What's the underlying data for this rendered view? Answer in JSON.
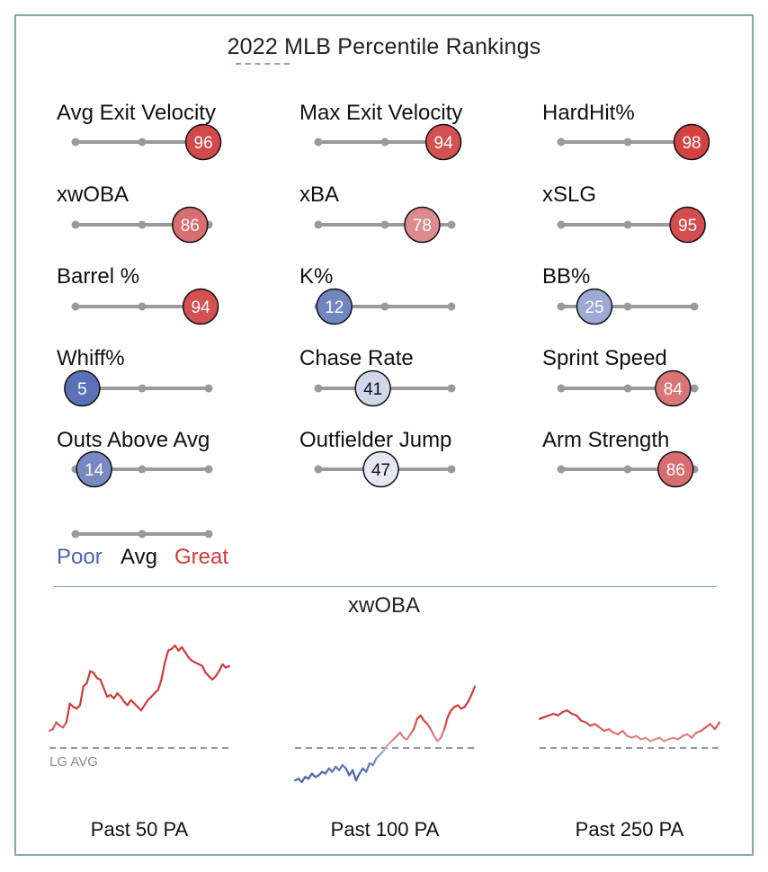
{
  "title": "2022 MLB Percentile Rankings",
  "colors": {
    "poor": "#4a63b0",
    "avg": "#111111",
    "great": "#d13b3b",
    "track": "#9a9a9a",
    "frame": "#7fa8ad",
    "lg_avg_line": "#8a8a8a"
  },
  "legend": {
    "poor": "Poor",
    "avg": "Avg",
    "great": "Great"
  },
  "chart_data": [
    {
      "type": "percentile-rankings",
      "metrics": [
        {
          "label": "Avg Exit Velocity",
          "percentile": 96
        },
        {
          "label": "Max Exit Velocity",
          "percentile": 94
        },
        {
          "label": "HardHit%",
          "percentile": 98
        },
        {
          "label": "xwOBA",
          "percentile": 86
        },
        {
          "label": "xBA",
          "percentile": 78
        },
        {
          "label": "xSLG",
          "percentile": 95
        },
        {
          "label": "Barrel %",
          "percentile": 94
        },
        {
          "label": "K%",
          "percentile": 12
        },
        {
          "label": "BB%",
          "percentile": 25
        },
        {
          "label": "Whiff%",
          "percentile": 5
        },
        {
          "label": "Chase Rate",
          "percentile": 41
        },
        {
          "label": "Sprint Speed",
          "percentile": 84
        },
        {
          "label": "Outs Above Avg",
          "percentile": 14
        },
        {
          "label": "Outfielder Jump",
          "percentile": 47
        },
        {
          "label": "Arm Strength",
          "percentile": 86
        }
      ],
      "scale": [
        0,
        100
      ]
    },
    {
      "type": "line",
      "title": "xwOBA",
      "reference_label": "LG AVG",
      "panels": [
        {
          "label": "Past 50 PA",
          "reference": 0,
          "ylim": [
            -1.3,
            1.3
          ],
          "values": [
            0.2,
            0.22,
            0.3,
            0.26,
            0.24,
            0.3,
            0.52,
            0.48,
            0.46,
            0.5,
            0.72,
            0.76,
            0.9,
            0.88,
            0.82,
            0.8,
            0.7,
            0.6,
            0.62,
            0.58,
            0.64,
            0.6,
            0.54,
            0.5,
            0.56,
            0.52,
            0.48,
            0.44,
            0.5,
            0.56,
            0.6,
            0.64,
            0.68,
            0.8,
            1.0,
            1.14,
            1.16,
            1.2,
            1.14,
            1.18,
            1.12,
            1.06,
            1.02,
            1.0,
            0.98,
            0.96,
            0.88,
            0.84,
            0.8,
            0.84,
            0.9,
            0.98,
            0.94,
            0.96
          ]
        },
        {
          "label": "Past 100 PA",
          "reference": 0,
          "ylim": [
            -1.3,
            1.3
          ],
          "values": [
            -0.38,
            -0.36,
            -0.4,
            -0.34,
            -0.36,
            -0.3,
            -0.34,
            -0.32,
            -0.28,
            -0.3,
            -0.24,
            -0.28,
            -0.22,
            -0.26,
            -0.2,
            -0.24,
            -0.32,
            -0.26,
            -0.38,
            -0.3,
            -0.24,
            -0.28,
            -0.18,
            -0.2,
            -0.12,
            -0.08,
            -0.04,
            0.02,
            0.06,
            0.1,
            0.14,
            0.18,
            0.12,
            0.1,
            0.16,
            0.22,
            0.34,
            0.38,
            0.32,
            0.28,
            0.22,
            0.14,
            0.08,
            0.12,
            0.22,
            0.36,
            0.44,
            0.48,
            0.5,
            0.46,
            0.48,
            0.54,
            0.62,
            0.72
          ]
        },
        {
          "label": "Past 250 PA",
          "reference": 0,
          "ylim": [
            -1.3,
            1.3
          ],
          "values": [
            0.34,
            0.36,
            0.38,
            0.4,
            0.38,
            0.42,
            0.44,
            0.4,
            0.38,
            0.32,
            0.3,
            0.26,
            0.28,
            0.24,
            0.2,
            0.22,
            0.18,
            0.16,
            0.2,
            0.14,
            0.12,
            0.14,
            0.1,
            0.12,
            0.08,
            0.1,
            0.12,
            0.08,
            0.1,
            0.12,
            0.1,
            0.14,
            0.16,
            0.12,
            0.18,
            0.2,
            0.24,
            0.28,
            0.22,
            0.3
          ]
        }
      ]
    }
  ]
}
